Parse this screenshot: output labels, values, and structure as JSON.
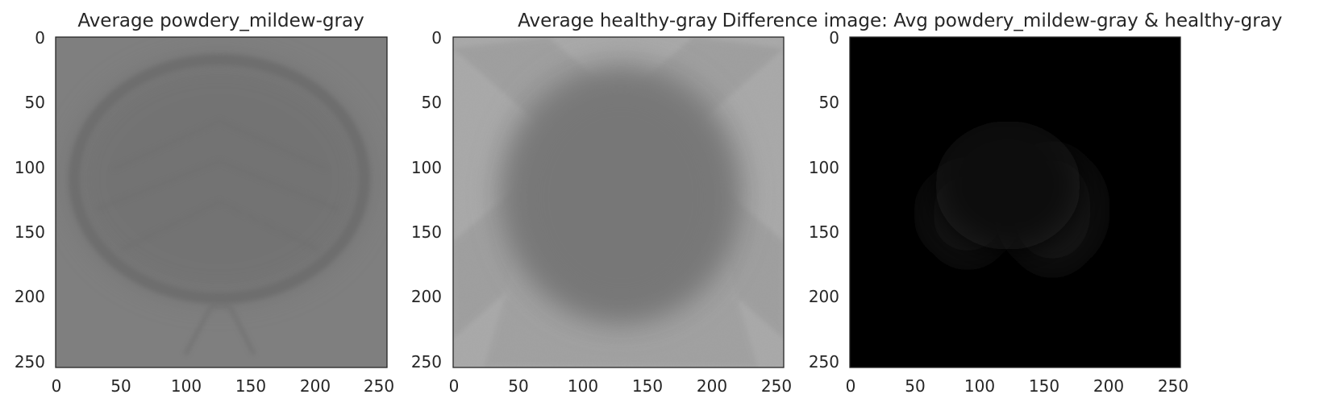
{
  "panels": [
    {
      "title": "Average powdery_mildew-gray",
      "x_ticks": [
        "0",
        "50",
        "100",
        "150",
        "200",
        "250"
      ],
      "y_ticks": [
        "0",
        "50",
        "100",
        "150",
        "200",
        "250"
      ]
    },
    {
      "title": "Average healthy-gray",
      "x_ticks": [
        "0",
        "50",
        "100",
        "150",
        "200",
        "250"
      ],
      "y_ticks": [
        "0",
        "50",
        "100",
        "150",
        "200",
        "250"
      ]
    },
    {
      "title": "Difference image: Avg powdery_mildew-gray & healthy-gray",
      "x_ticks": [
        "0",
        "50",
        "100",
        "150",
        "200",
        "250"
      ],
      "y_ticks": [
        "0",
        "50",
        "100",
        "150",
        "200",
        "250"
      ]
    }
  ],
  "axis": {
    "xlim": [
      0,
      255
    ],
    "ylim": [
      255,
      0
    ],
    "pixel_size": 256
  },
  "colors": {
    "powdery_background": "#7e7e7e",
    "powdery_leaf": "#727272",
    "healthy_background": "#a8a8a8",
    "healthy_leaf": "#7c7c7c",
    "difference_background": "#000000",
    "difference_signal": "#1a1a1a",
    "axis_frame": "#262626"
  }
}
